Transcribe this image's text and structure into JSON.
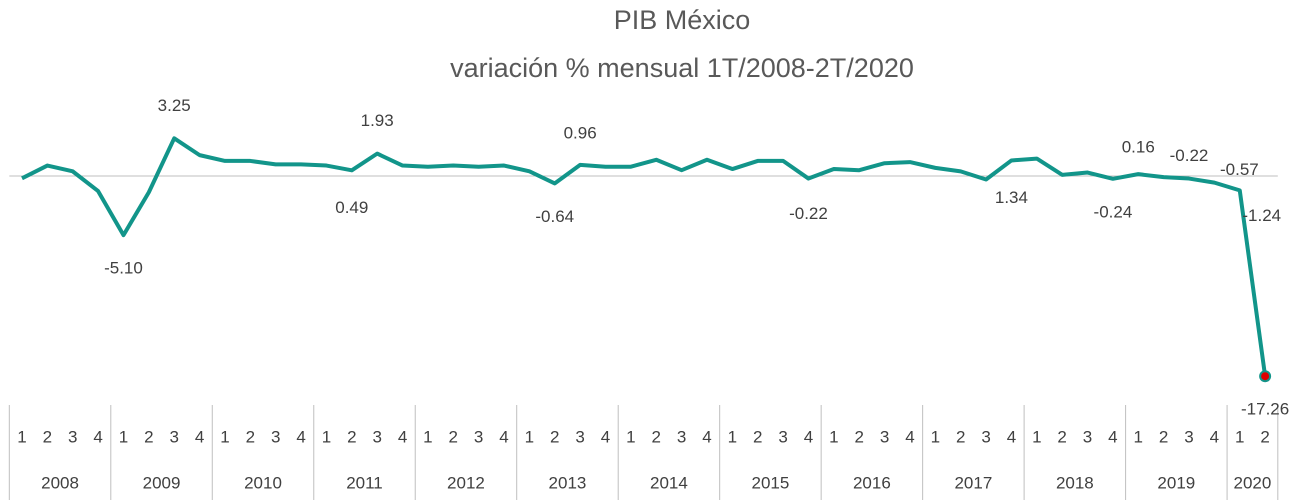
{
  "chart_data": {
    "type": "line",
    "title": "PIB México",
    "subtitle": "variación % mensual 1T/2008-2T/2020",
    "categories": [
      "1",
      "2",
      "3",
      "4",
      "1",
      "2",
      "3",
      "4",
      "1",
      "2",
      "3",
      "4",
      "1",
      "2",
      "3",
      "4",
      "1",
      "2",
      "3",
      "4",
      "1",
      "2",
      "3",
      "4",
      "1",
      "2",
      "3",
      "4",
      "1",
      "2",
      "3",
      "4",
      "1",
      "2",
      "3",
      "4",
      "1",
      "2",
      "3",
      "4",
      "1",
      "2",
      "3",
      "4",
      "1",
      "2",
      "3",
      "4",
      "1",
      "2"
    ],
    "years": [
      "2008",
      "2009",
      "2010",
      "2011",
      "2012",
      "2013",
      "2014",
      "2015",
      "2016",
      "2017",
      "2018",
      "2019",
      "2020"
    ],
    "series": [
      {
        "name": "PIB México",
        "color": "#12958a",
        "values": [
          -0.2,
          0.9,
          0.4,
          -1.3,
          -5.1,
          -1.4,
          3.25,
          1.8,
          1.3,
          1.3,
          1.0,
          1.0,
          0.9,
          0.49,
          1.93,
          0.9,
          0.8,
          0.9,
          0.8,
          0.9,
          0.4,
          -0.64,
          0.96,
          0.8,
          0.8,
          1.4,
          0.5,
          1.4,
          0.6,
          1.3,
          1.3,
          -0.22,
          0.6,
          0.5,
          1.1,
          1.2,
          0.7,
          0.4,
          -0.3,
          1.34,
          1.5,
          0.1,
          0.3,
          -0.24,
          0.16,
          -0.1,
          -0.22,
          -0.57,
          -1.24,
          -17.26
        ],
        "value_labels": [
          null,
          null,
          null,
          null,
          "-5.10",
          null,
          "3.25",
          null,
          null,
          null,
          null,
          null,
          null,
          "0.49",
          "1.93",
          null,
          null,
          null,
          null,
          null,
          null,
          "-0.64",
          "0.96",
          null,
          null,
          null,
          null,
          null,
          null,
          null,
          null,
          "-0.22",
          null,
          null,
          null,
          null,
          null,
          null,
          null,
          "1.34",
          null,
          null,
          null,
          "-0.24",
          "0.16",
          null,
          "-0.22",
          "-0.57",
          "-1.24",
          "-17.26"
        ]
      }
    ],
    "highlight_color": "#e00000",
    "ylim": [
      -18,
      6
    ]
  }
}
